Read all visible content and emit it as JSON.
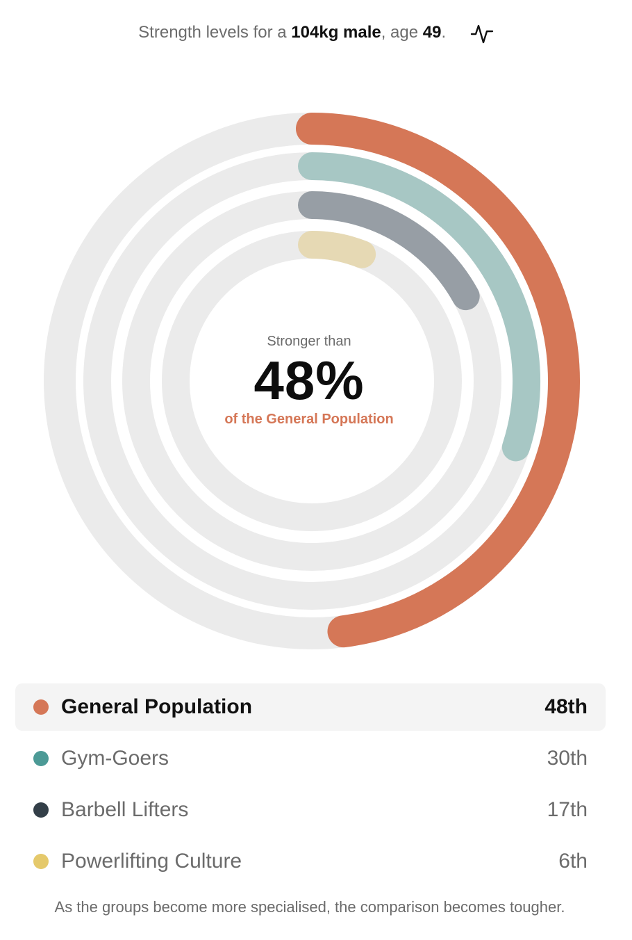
{
  "header": {
    "prefix": "Strength levels for a ",
    "bodyweight_sex": "104kg male",
    "age_prefix": ", age ",
    "age": "49",
    "suffix": ".",
    "icon": "pulse-icon"
  },
  "center": {
    "lead": "Stronger than",
    "percent": "48%",
    "group": "of the General Population",
    "group_color": "#d57757"
  },
  "chart_data": {
    "type": "radial-bar",
    "title": "",
    "range": [
      0,
      100
    ],
    "track_color": "#ebebeb",
    "series": [
      {
        "name": "General Population",
        "value": 48,
        "color": "#d57757",
        "arc_color": "#d57757"
      },
      {
        "name": "Gym-Goers",
        "value": 30,
        "color": "#4c9a96",
        "arc_color": "#a7c7c4"
      },
      {
        "name": "Barbell Lifters",
        "value": 17,
        "color": "#333f48",
        "arc_color": "#979ea5"
      },
      {
        "name": "Powerlifting Culture",
        "value": 6,
        "color": "#e5c96b",
        "arc_color": "#e6d9b4"
      }
    ]
  },
  "legend": [
    {
      "name": "General Population",
      "rank": "48th",
      "active": true
    },
    {
      "name": "Gym-Goers",
      "rank": "30th",
      "active": false
    },
    {
      "name": "Barbell Lifters",
      "rank": "17th",
      "active": false
    },
    {
      "name": "Powerlifting Culture",
      "rank": "6th",
      "active": false
    }
  ],
  "footnote": "As the groups become more specialised, the comparison becomes tougher."
}
